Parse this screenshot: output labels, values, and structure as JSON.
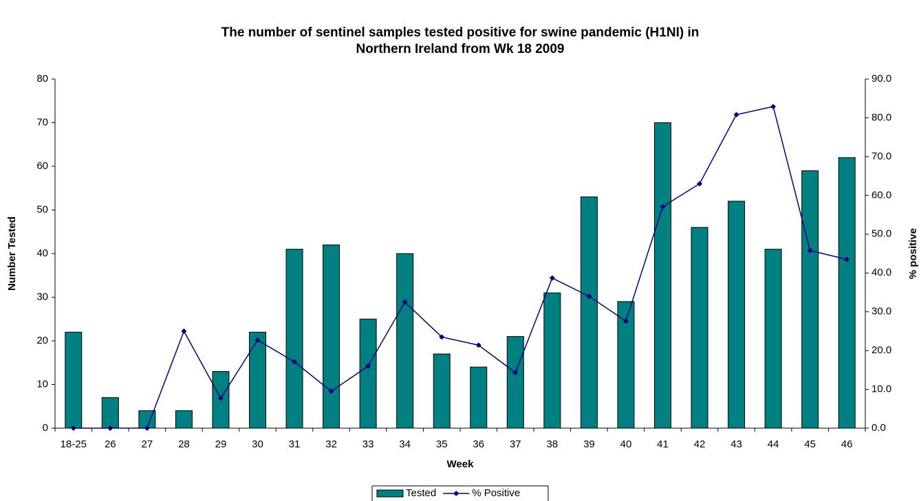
{
  "chart_data": {
    "type": "bar_line",
    "title": [
      "The number of sentinel samples tested positive for swine pandemic (H1NI) in",
      "Northern Ireland from Wk 18 2009"
    ],
    "xlabel": "Week",
    "ylabel": "Number Tested",
    "y2label": "% positive",
    "categories": [
      "18-25",
      "26",
      "27",
      "28",
      "29",
      "30",
      "31",
      "32",
      "33",
      "34",
      "35",
      "36",
      "37",
      "38",
      "39",
      "40",
      "41",
      "42",
      "43",
      "44",
      "45",
      "46"
    ],
    "series": [
      {
        "name": "Tested",
        "color": "#008080",
        "type": "bar",
        "values": [
          22,
          7,
          4,
          4,
          13,
          22,
          41,
          42,
          25,
          40,
          17,
          14,
          21,
          31,
          53,
          29,
          70,
          46,
          52,
          41,
          59,
          62
        ]
      },
      {
        "name": "% Positive",
        "color": "#000080",
        "type": "line",
        "axis": "y2",
        "values": [
          0,
          0,
          0,
          25.0,
          7.7,
          22.7,
          17.1,
          9.5,
          16.0,
          32.5,
          23.5,
          21.4,
          14.3,
          38.7,
          34.0,
          27.6,
          57.1,
          63.0,
          80.8,
          82.9,
          45.8,
          43.5
        ]
      }
    ],
    "ylim": [
      0,
      80
    ],
    "yticks": [
      0,
      10,
      20,
      30,
      40,
      50,
      60,
      70,
      80
    ],
    "y2lim": [
      0,
      90
    ],
    "y2ticks": [
      {
        "value": 0,
        "label": "0.0"
      },
      {
        "value": 10,
        "label": "10.0"
      },
      {
        "value": 20,
        "label": "20.0"
      },
      {
        "value": 30,
        "label": "30.0"
      },
      {
        "value": 40,
        "label": "40.0"
      },
      {
        "value": 50,
        "label": "50.0"
      },
      {
        "value": 60,
        "label": "60.0"
      },
      {
        "value": 70,
        "label": "70.0"
      },
      {
        "value": 80,
        "label": "80.0"
      },
      {
        "value": 90,
        "label": "90.0"
      }
    ],
    "grid": false,
    "legend": "bottom"
  }
}
